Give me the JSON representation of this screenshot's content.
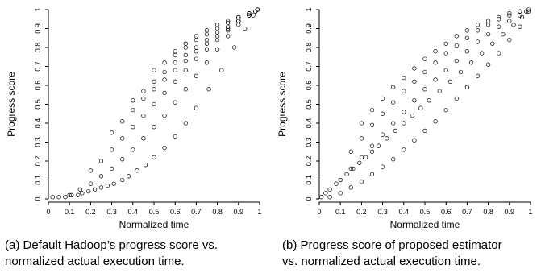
{
  "panels": [
    {
      "caption_line1": "(a) Default Hadoop’s progress score vs.",
      "caption_line2": "normalized actual execution time."
    },
    {
      "caption_line1": "(b) Progress score of proposed estimator",
      "caption_line2": "vs. normalized actual execution time."
    }
  ],
  "chart_data": [
    {
      "type": "scatter",
      "title": "",
      "xlabel": "Normalized time",
      "ylabel": "Progress score",
      "xlim": [
        0,
        1
      ],
      "ylim": [
        0,
        1
      ],
      "xticks": [
        "0",
        "0.1",
        "0.2",
        "0.3",
        "0.4",
        "0.5",
        "0.6",
        "0.7",
        "0.8",
        "0.9",
        "1"
      ],
      "yticks": [
        "0",
        "0.1",
        "0.2",
        "0.3",
        "0.4",
        "0.5",
        "0.6",
        "0.7",
        "0.8",
        "0.9",
        "1"
      ],
      "marker": "open-circle",
      "grid": false,
      "series": [
        {
          "x": [
            0.02,
            0.05,
            0.08,
            0.11,
            0.14,
            0.16,
            0.19,
            0.22,
            0.25,
            0.28,
            0.31,
            0.35,
            0.38,
            0.42,
            0.46,
            0.5,
            0.55,
            0.6,
            0.65,
            0.7,
            0.76,
            0.82,
            0.88,
            0.93,
            0.97,
            0.99,
            0.1,
            0.15,
            0.2,
            0.25,
            0.3,
            0.35,
            0.4,
            0.45,
            0.5,
            0.55,
            0.6,
            0.65,
            0.7,
            0.75,
            0.8,
            0.85,
            0.9,
            0.95,
            0.2,
            0.25,
            0.3,
            0.35,
            0.4,
            0.45,
            0.5,
            0.55,
            0.6,
            0.65,
            0.7,
            0.75,
            0.8,
            0.85,
            0.9,
            0.95,
            0.98,
            0.3,
            0.35,
            0.4,
            0.45,
            0.5,
            0.55,
            0.6,
            0.65,
            0.7,
            0.75,
            0.8,
            0.85,
            0.9,
            0.95,
            0.98,
            0.4,
            0.45,
            0.5,
            0.55,
            0.6,
            0.65,
            0.7,
            0.75,
            0.8,
            0.85,
            0.9,
            0.95,
            0.99,
            0.5,
            0.55,
            0.6,
            0.65,
            0.7,
            0.75,
            0.8,
            0.85,
            0.9,
            0.95,
            0.99,
            0.6,
            0.65,
            0.7,
            0.75,
            0.8,
            0.85,
            0.9,
            0.95,
            0.99
          ],
          "y": [
            0.01,
            0.01,
            0.01,
            0.02,
            0.02,
            0.03,
            0.04,
            0.05,
            0.06,
            0.07,
            0.08,
            0.1,
            0.12,
            0.15,
            0.18,
            0.22,
            0.27,
            0.33,
            0.4,
            0.48,
            0.58,
            0.68,
            0.8,
            0.9,
            0.97,
            1.0,
            0.02,
            0.05,
            0.08,
            0.12,
            0.16,
            0.21,
            0.26,
            0.32,
            0.38,
            0.44,
            0.51,
            0.58,
            0.65,
            0.72,
            0.79,
            0.86,
            0.92,
            0.98,
            0.15,
            0.2,
            0.26,
            0.32,
            0.38,
            0.44,
            0.5,
            0.56,
            0.62,
            0.68,
            0.74,
            0.79,
            0.84,
            0.89,
            0.94,
            0.97,
            0.99,
            0.35,
            0.41,
            0.47,
            0.53,
            0.58,
            0.63,
            0.68,
            0.73,
            0.78,
            0.82,
            0.86,
            0.9,
            0.94,
            0.97,
            0.99,
            0.52,
            0.57,
            0.62,
            0.67,
            0.72,
            0.76,
            0.8,
            0.84,
            0.88,
            0.91,
            0.94,
            0.97,
            1.0,
            0.68,
            0.72,
            0.76,
            0.8,
            0.84,
            0.87,
            0.9,
            0.93,
            0.96,
            0.98,
            1.0,
            0.78,
            0.82,
            0.86,
            0.89,
            0.92,
            0.94,
            0.96,
            0.98,
            1.0
          ]
        }
      ]
    },
    {
      "type": "scatter",
      "title": "",
      "xlabel": "Normalized time",
      "ylabel": "Progress score",
      "xlim": [
        0,
        1
      ],
      "ylim": [
        0,
        1
      ],
      "xticks": [
        "0",
        "0.1",
        "0.2",
        "0.3",
        "0.4",
        "0.5",
        "0.6",
        "0.7",
        "0.8",
        "0.9",
        "1"
      ],
      "yticks": [
        "0",
        "0.1",
        "0.2",
        "0.3",
        "0.4",
        "0.5",
        "0.6",
        "0.7",
        "0.8",
        "0.9",
        "1"
      ],
      "marker": "open-circle",
      "grid": false,
      "series": [
        {
          "x": [
            0.01,
            0.03,
            0.05,
            0.08,
            0.1,
            0.13,
            0.16,
            0.19,
            0.22,
            0.25,
            0.28,
            0.32,
            0.36,
            0.4,
            0.44,
            0.48,
            0.52,
            0.57,
            0.62,
            0.67,
            0.72,
            0.77,
            0.82,
            0.87,
            0.92,
            0.96,
            0.99,
            0.05,
            0.1,
            0.15,
            0.2,
            0.25,
            0.3,
            0.35,
            0.4,
            0.45,
            0.5,
            0.55,
            0.6,
            0.65,
            0.7,
            0.75,
            0.8,
            0.85,
            0.9,
            0.95,
            0.1,
            0.15,
            0.2,
            0.25,
            0.3,
            0.35,
            0.4,
            0.45,
            0.5,
            0.55,
            0.6,
            0.65,
            0.7,
            0.75,
            0.8,
            0.85,
            0.9,
            0.95,
            0.98,
            0.15,
            0.2,
            0.25,
            0.3,
            0.35,
            0.4,
            0.45,
            0.5,
            0.55,
            0.6,
            0.65,
            0.7,
            0.75,
            0.8,
            0.85,
            0.9,
            0.95,
            0.2,
            0.25,
            0.3,
            0.35,
            0.4,
            0.45,
            0.5,
            0.55,
            0.6,
            0.65,
            0.7,
            0.75,
            0.8,
            0.85,
            0.9,
            0.95,
            0.99
          ],
          "y": [
            0.01,
            0.03,
            0.05,
            0.08,
            0.1,
            0.13,
            0.16,
            0.19,
            0.22,
            0.25,
            0.28,
            0.32,
            0.36,
            0.4,
            0.44,
            0.48,
            0.52,
            0.57,
            0.62,
            0.67,
            0.72,
            0.77,
            0.82,
            0.87,
            0.92,
            0.96,
            0.99,
            0.01,
            0.03,
            0.06,
            0.09,
            0.13,
            0.17,
            0.21,
            0.26,
            0.31,
            0.36,
            0.41,
            0.47,
            0.53,
            0.59,
            0.65,
            0.71,
            0.77,
            0.84,
            0.91,
            0.1,
            0.16,
            0.22,
            0.28,
            0.34,
            0.4,
            0.46,
            0.52,
            0.58,
            0.63,
            0.68,
            0.73,
            0.78,
            0.83,
            0.87,
            0.91,
            0.94,
            0.97,
            0.99,
            0.25,
            0.32,
            0.39,
            0.45,
            0.51,
            0.57,
            0.62,
            0.67,
            0.72,
            0.77,
            0.81,
            0.85,
            0.89,
            0.92,
            0.95,
            0.97,
            0.99,
            0.4,
            0.47,
            0.53,
            0.59,
            0.64,
            0.69,
            0.74,
            0.78,
            0.82,
            0.86,
            0.89,
            0.92,
            0.94,
            0.96,
            0.98,
            0.99,
            1.0
          ]
        }
      ]
    }
  ]
}
